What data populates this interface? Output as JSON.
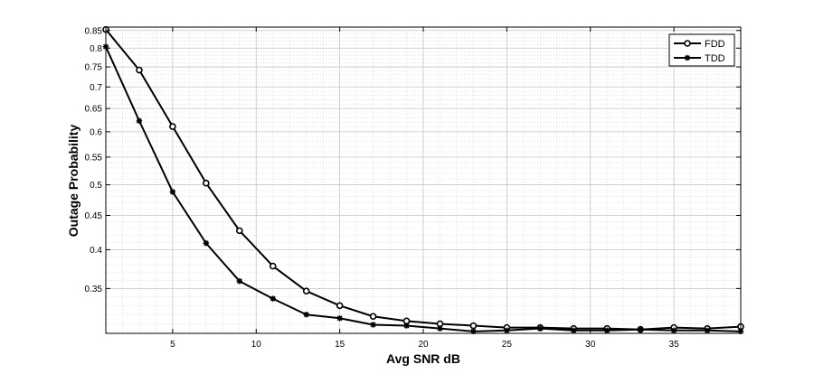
{
  "chart_data": {
    "type": "line",
    "title": "",
    "xlabel": "Avg SNR dB",
    "ylabel": "Outage Probability",
    "xlim": [
      1,
      39
    ],
    "ylim": [
      0.3,
      0.86
    ],
    "y_scale": "log",
    "grid": true,
    "minor_grid": true,
    "legend_position": "top-right",
    "x_ticks": [
      5,
      10,
      15,
      20,
      25,
      30,
      35
    ],
    "y_ticks": [
      0.35,
      0.4,
      0.45,
      0.5,
      0.55,
      0.6,
      0.65,
      0.7,
      0.75,
      0.8,
      0.85
    ],
    "x": [
      1,
      3,
      5,
      7,
      9,
      11,
      13,
      15,
      17,
      19,
      21,
      23,
      25,
      27,
      29,
      31,
      33,
      35,
      37,
      39
    ],
    "series": [
      {
        "name": "FDD",
        "marker": "circle",
        "color": "#000000",
        "values": [
          0.853,
          0.742,
          0.611,
          0.503,
          0.427,
          0.378,
          0.347,
          0.33,
          0.318,
          0.313,
          0.31,
          0.308,
          0.306,
          0.306,
          0.305,
          0.305,
          0.304,
          0.306,
          0.305,
          0.307
        ]
      },
      {
        "name": "TDD",
        "marker": "star",
        "color": "#000000",
        "values": [
          0.804,
          0.623,
          0.488,
          0.409,
          0.359,
          0.338,
          0.32,
          0.316,
          0.309,
          0.308,
          0.305,
          0.302,
          0.303,
          0.305,
          0.303,
          0.303,
          0.304,
          0.303,
          0.303,
          0.302
        ]
      }
    ]
  }
}
